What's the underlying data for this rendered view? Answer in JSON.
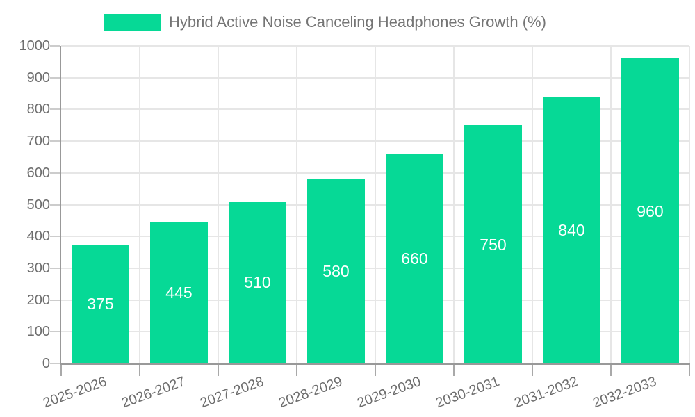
{
  "chart_data": {
    "type": "bar",
    "series_name": "Hybrid Active Noise Canceling Headphones Growth (%)",
    "title": "Hybrid Active Noise Canceling Headphones Growth (%)",
    "categories": [
      "2025-2026",
      "2026-2027",
      "2027-2028",
      "2028-2029",
      "2029-2030",
      "2030-2031",
      "2031-2032",
      "2032-2033"
    ],
    "values": [
      375,
      445,
      510,
      580,
      660,
      750,
      840,
      960
    ],
    "xlabel": "",
    "ylabel": "",
    "ylim": [
      0,
      1000
    ],
    "yticks": [
      0,
      100,
      200,
      300,
      400,
      500,
      600,
      700,
      800,
      900,
      1000
    ],
    "grid": true,
    "legend_position": "top",
    "value_labels": "inside-center",
    "bar_width_ratio": 0.726,
    "x_label_rotation_deg": -20
  },
  "colors": {
    "bar": "#06d996",
    "grid": "#e6e6e6",
    "axis": "#999999",
    "tick_x": "#a9a9a9",
    "tick_y": "#cccccc",
    "axis_label": "#6e6e6e",
    "legend_text": "#757575",
    "value_label": "#ffffff",
    "background": "#ffffff"
  }
}
